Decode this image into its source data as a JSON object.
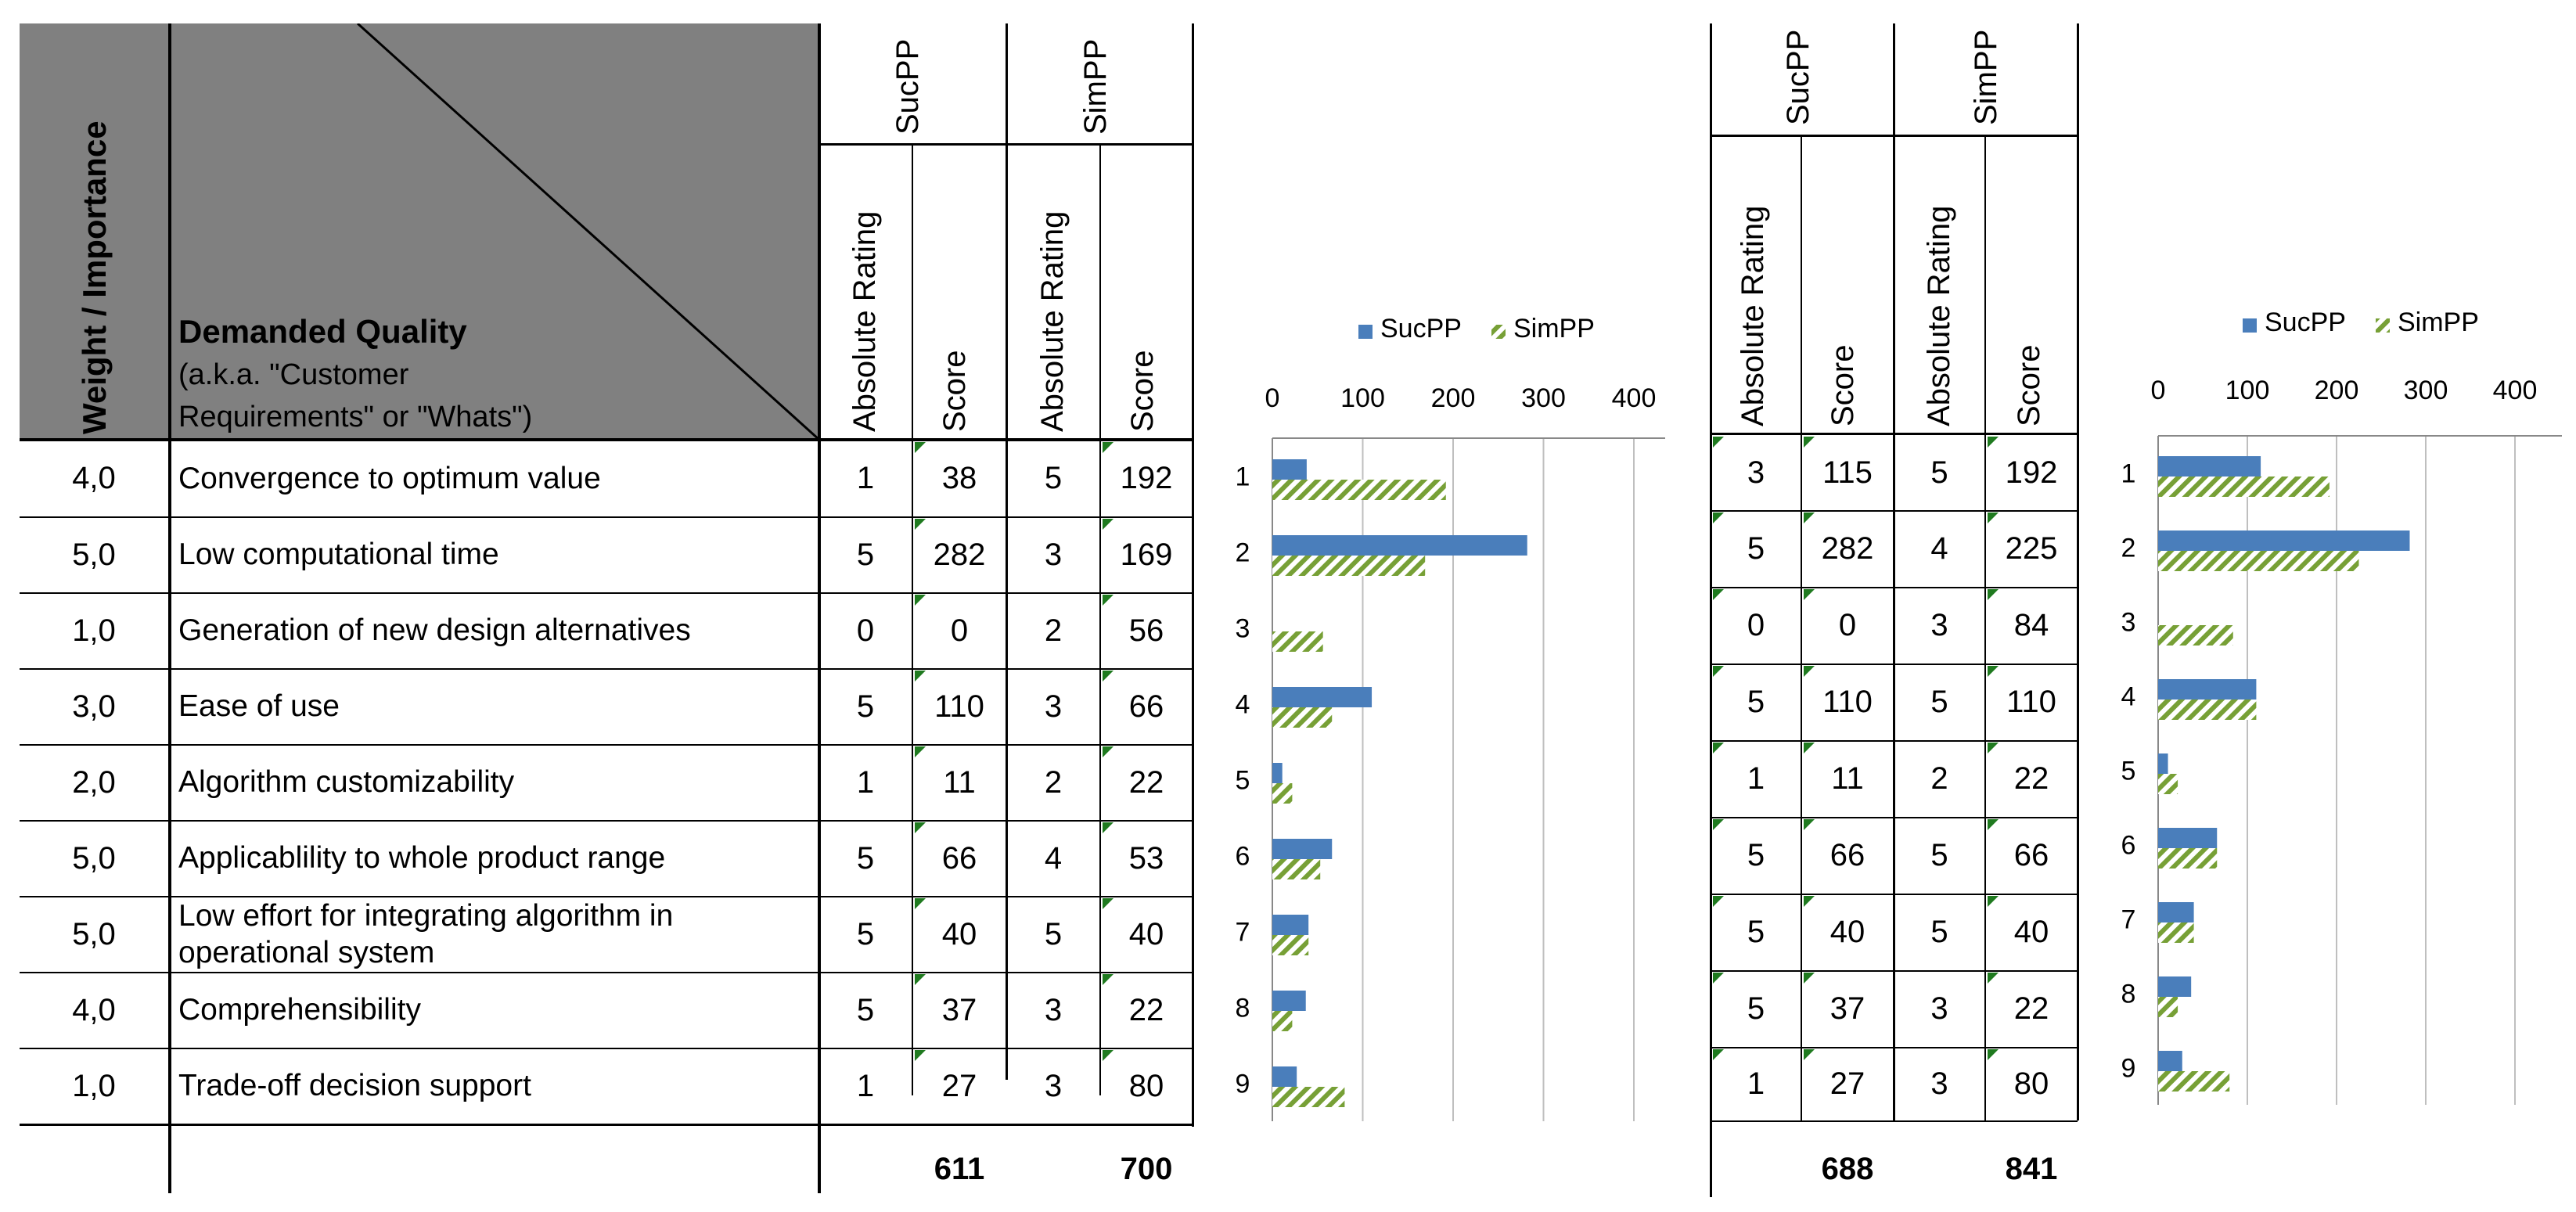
{
  "header": {
    "weight_label": "Weight / Importance",
    "dq_title": "Demanded Quality",
    "dq_sub1": "(a.k.a. \"Customer",
    "dq_sub2": "Requirements\" or \"Whats\")",
    "group_sucpp": "SucPP",
    "group_simpp": "SimPP",
    "col_abs": "Absolute Rating",
    "col_score": "Score"
  },
  "rows": [
    {
      "weight": "4,0",
      "label": "Convergence to optimum value",
      "t1": {
        "s_abs": "1",
        "s_score": "38",
        "p_abs": "5",
        "p_score": "192"
      },
      "t2": {
        "s_abs": "3",
        "s_score": "115",
        "p_abs": "5",
        "p_score": "192"
      }
    },
    {
      "weight": "5,0",
      "label": "Low computational time",
      "t1": {
        "s_abs": "5",
        "s_score": "282",
        "p_abs": "3",
        "p_score": "169"
      },
      "t2": {
        "s_abs": "5",
        "s_score": "282",
        "p_abs": "4",
        "p_score": "225"
      }
    },
    {
      "weight": "1,0",
      "label": "Generation of new design alternatives",
      "t1": {
        "s_abs": "0",
        "s_score": "0",
        "p_abs": "2",
        "p_score": "56"
      },
      "t2": {
        "s_abs": "0",
        "s_score": "0",
        "p_abs": "3",
        "p_score": "84"
      }
    },
    {
      "weight": "3,0",
      "label": "Ease of use",
      "t1": {
        "s_abs": "5",
        "s_score": "110",
        "p_abs": "3",
        "p_score": "66"
      },
      "t2": {
        "s_abs": "5",
        "s_score": "110",
        "p_abs": "5",
        "p_score": "110"
      }
    },
    {
      "weight": "2,0",
      "label": "Algorithm customizability",
      "t1": {
        "s_abs": "1",
        "s_score": "11",
        "p_abs": "2",
        "p_score": "22"
      },
      "t2": {
        "s_abs": "1",
        "s_score": "11",
        "p_abs": "2",
        "p_score": "22"
      }
    },
    {
      "weight": "5,0",
      "label": "Applicablility to whole product range",
      "t1": {
        "s_abs": "5",
        "s_score": "66",
        "p_abs": "4",
        "p_score": "53"
      },
      "t2": {
        "s_abs": "5",
        "s_score": "66",
        "p_abs": "5",
        "p_score": "66"
      }
    },
    {
      "weight": "5,0",
      "label": "Low effort for integrating algorithm in",
      "label2": "operational system",
      "t1": {
        "s_abs": "5",
        "s_score": "40",
        "p_abs": "5",
        "p_score": "40"
      },
      "t2": {
        "s_abs": "5",
        "s_score": "40",
        "p_abs": "5",
        "p_score": "40"
      }
    },
    {
      "weight": "4,0",
      "label": "Comprehensibility",
      "t1": {
        "s_abs": "5",
        "s_score": "37",
        "p_abs": "3",
        "p_score": "22"
      },
      "t2": {
        "s_abs": "5",
        "s_score": "37",
        "p_abs": "3",
        "p_score": "22"
      }
    },
    {
      "weight": "1,0",
      "label": "Trade-off decision support",
      "t1": {
        "s_abs": "1",
        "s_score": "27",
        "p_abs": "3",
        "p_score": "80"
      },
      "t2": {
        "s_abs": "1",
        "s_score": "27",
        "p_abs": "3",
        "p_score": "80"
      }
    }
  ],
  "totals": {
    "t1_sucpp": "611",
    "t1_simpp": "700",
    "t2_sucpp": "688",
    "t2_simpp": "841"
  },
  "colors": {
    "sucpp": "#4a7ebb",
    "simpp": "#77a036",
    "header_fill": "#808080",
    "marker": "#1f7a1f"
  },
  "chart_data": [
    {
      "type": "bar",
      "orientation": "horizontal",
      "categories": [
        "1",
        "2",
        "3",
        "4",
        "5",
        "6",
        "7",
        "8",
        "9"
      ],
      "xlim": [
        0,
        400
      ],
      "xticks": [
        0,
        100,
        200,
        300,
        400
      ],
      "legend": "top",
      "series": [
        {
          "name": "SucPP",
          "values": [
            38,
            282,
            0,
            110,
            11,
            66,
            40,
            37,
            27
          ]
        },
        {
          "name": "SimPP",
          "values": [
            192,
            169,
            56,
            66,
            22,
            53,
            40,
            22,
            80
          ]
        }
      ]
    },
    {
      "type": "bar",
      "orientation": "horizontal",
      "categories": [
        "1",
        "2",
        "3",
        "4",
        "5",
        "6",
        "7",
        "8",
        "9"
      ],
      "xlim": [
        0,
        400
      ],
      "xticks": [
        0,
        100,
        200,
        300,
        400
      ],
      "legend": "top",
      "series": [
        {
          "name": "SucPP",
          "values": [
            115,
            282,
            0,
            110,
            11,
            66,
            40,
            37,
            27
          ]
        },
        {
          "name": "SimPP",
          "values": [
            192,
            225,
            84,
            110,
            22,
            66,
            40,
            22,
            80
          ]
        }
      ]
    }
  ]
}
